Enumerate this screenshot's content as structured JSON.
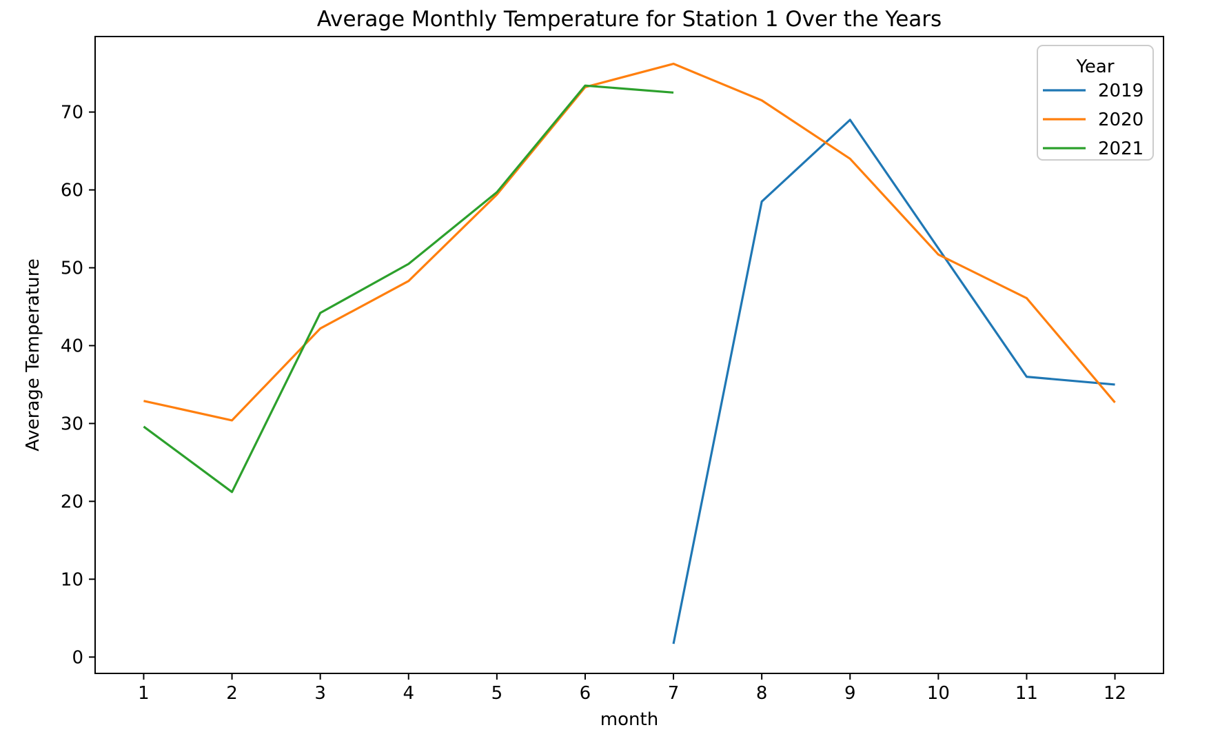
{
  "figure": {
    "background": "#ffffff",
    "spine_color": "#000000"
  },
  "chart_data": {
    "type": "line",
    "title": "Average Monthly Temperature for Station 1 Over the Years",
    "xlabel": "month",
    "ylabel": "Average Temperature",
    "x_ticks": [
      1,
      2,
      3,
      4,
      5,
      6,
      7,
      8,
      9,
      10,
      11,
      12
    ],
    "y_ticks": [
      0,
      10,
      20,
      30,
      40,
      50,
      60,
      70
    ],
    "xlim": [
      0.45,
      12.55
    ],
    "ylim": [
      -2.1,
      79.7
    ],
    "grid": false,
    "legend_title": "Year",
    "legend_position": "upper right",
    "series": [
      {
        "name": "2019",
        "color": "#1f77b4",
        "x": [
          7,
          8,
          9,
          10,
          11,
          12
        ],
        "y": [
          1.7,
          58.5,
          69.0,
          52.5,
          36.0,
          35.0
        ]
      },
      {
        "name": "2020",
        "color": "#ff7f0e",
        "x": [
          1,
          2,
          3,
          4,
          5,
          6,
          7,
          8,
          9,
          10,
          11,
          12
        ],
        "y": [
          32.9,
          30.4,
          42.2,
          48.3,
          59.4,
          73.2,
          76.2,
          71.5,
          64.0,
          51.7,
          46.1,
          32.7
        ]
      },
      {
        "name": "2021",
        "color": "#2ca02c",
        "x": [
          1,
          2,
          3,
          4,
          5,
          6,
          7
        ],
        "y": [
          29.6,
          21.2,
          44.2,
          50.5,
          59.7,
          73.4,
          72.5
        ]
      }
    ]
  }
}
